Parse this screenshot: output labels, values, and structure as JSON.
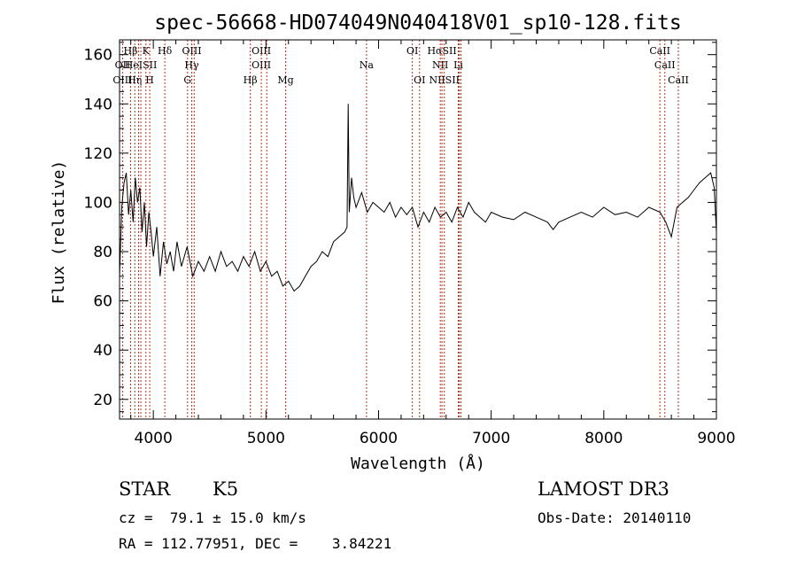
{
  "chart_data": {
    "type": "line",
    "title": "spec-56668-HD074049N040418V01_sp10-128.fits",
    "xlabel": "Wavelength (Å)",
    "ylabel": "Flux (relative)",
    "xlim": [
      3700,
      9000
    ],
    "ylim": [
      12,
      166
    ],
    "xticks": [
      4000,
      5000,
      6000,
      7000,
      8000,
      9000
    ],
    "yticks": [
      20,
      40,
      60,
      80,
      100,
      120,
      140,
      160
    ],
    "grid": false,
    "series": [
      {
        "x": [
          3700,
          3720,
          3740,
          3760,
          3780,
          3800,
          3820,
          3840,
          3860,
          3880,
          3900,
          3920,
          3940,
          3960,
          3980,
          4000,
          4030,
          4060,
          4090,
          4120,
          4150,
          4180,
          4210,
          4250,
          4300,
          4350,
          4400,
          4450,
          4500,
          4550,
          4600,
          4650,
          4700,
          4750,
          4800,
          4850,
          4900,
          4950,
          5000,
          5050,
          5100,
          5150,
          5200,
          5250,
          5300,
          5350,
          5400,
          5450,
          5500,
          5550,
          5600,
          5650,
          5700,
          5720,
          5730,
          5740,
          5760,
          5780,
          5800,
          5850,
          5900,
          5950,
          6000,
          6050,
          6100,
          6150,
          6200,
          6250,
          6300,
          6350,
          6400,
          6450,
          6500,
          6550,
          6600,
          6650,
          6700,
          6750,
          6800,
          6850,
          6900,
          6950,
          7000,
          7100,
          7200,
          7300,
          7400,
          7500,
          7550,
          7600,
          7700,
          7800,
          7900,
          8000,
          8100,
          8200,
          8300,
          8400,
          8500,
          8550,
          8600,
          8650,
          8700,
          8750,
          8800,
          8850,
          8900,
          8950,
          8980,
          9000
        ],
        "y": [
          70,
          98,
          108,
          112,
          95,
          105,
          92,
          110,
          100,
          106,
          88,
          100,
          82,
          96,
          88,
          78,
          90,
          70,
          84,
          75,
          80,
          72,
          84,
          74,
          82,
          70,
          76,
          72,
          78,
          72,
          80,
          74,
          76,
          72,
          78,
          74,
          80,
          72,
          76,
          70,
          72,
          66,
          68,
          64,
          66,
          70,
          74,
          76,
          80,
          78,
          84,
          86,
          88,
          90,
          140,
          96,
          110,
          102,
          98,
          104,
          96,
          100,
          98,
          96,
          100,
          94,
          98,
          95,
          98,
          90,
          96,
          92,
          98,
          94,
          96,
          92,
          98,
          94,
          100,
          96,
          94,
          92,
          96,
          94,
          93,
          96,
          94,
          92,
          89,
          92,
          94,
          96,
          94,
          98,
          95,
          96,
          94,
          98,
          96,
          92,
          86,
          98,
          100,
          102,
          105,
          108,
          110,
          112,
          106,
          88
        ]
      }
    ],
    "spectral_lines": [
      {
        "label": "Hβ",
        "x": 3798,
        "row": 1
      },
      {
        "label": "K",
        "x": 3934,
        "row": 1
      },
      {
        "label": "Hδ",
        "x": 4102,
        "row": 1
      },
      {
        "label": "OIII",
        "x": 4341,
        "row": 1
      },
      {
        "label": "OIII",
        "x": 4959,
        "row": 1
      },
      {
        "label": "OI",
        "x": 6300,
        "row": 1
      },
      {
        "label": "HαSII",
        "x": 6563,
        "row": 1
      },
      {
        "label": "CaII",
        "x": 8498,
        "row": 1
      },
      {
        "label": "OII",
        "x": 3727,
        "row": 2
      },
      {
        "label": "HeISII",
        "x": 3889,
        "row": 2
      },
      {
        "label": "Hγ",
        "x": 4341,
        "row": 2
      },
      {
        "label": "OIII",
        "x": 4959,
        "row": 2
      },
      {
        "label": "Na",
        "x": 5893,
        "row": 2
      },
      {
        "label": "NII",
        "x": 6548,
        "row": 2
      },
      {
        "label": "Li",
        "x": 6708,
        "row": 2
      },
      {
        "label": "CaII",
        "x": 8542,
        "row": 2
      },
      {
        "label": "OIII",
        "x": 3727,
        "row": 3
      },
      {
        "label": "Hη",
        "x": 3835,
        "row": 3
      },
      {
        "label": "H",
        "x": 3968,
        "row": 3
      },
      {
        "label": "G",
        "x": 4304,
        "row": 3
      },
      {
        "label": "Hβ",
        "x": 4861,
        "row": 3
      },
      {
        "label": "Mg",
        "x": 5175,
        "row": 3
      },
      {
        "label": "OI",
        "x": 6364,
        "row": 3
      },
      {
        "label": "NIISII",
        "x": 6584,
        "row": 3
      },
      {
        "label": "CaII",
        "x": 8662,
        "row": 3
      }
    ],
    "line_positions": [
      3727,
      3798,
      3835,
      3869,
      3889,
      3934,
      3968,
      4102,
      4304,
      4341,
      4363,
      4861,
      4959,
      5007,
      5175,
      5893,
      6300,
      6364,
      6548,
      6563,
      6584,
      6708,
      6716,
      6731,
      8498,
      8542,
      8662
    ],
    "line_color": "#c03020"
  },
  "info": {
    "object_class": "STAR",
    "subclass": "K5",
    "survey": "LAMOST DR3",
    "cz": "cz =  79.1 ± 15.0 km/s",
    "obs_date": "Obs-Date: 20140110",
    "coords": "RA = 112.77951, DEC =    3.84221"
  }
}
